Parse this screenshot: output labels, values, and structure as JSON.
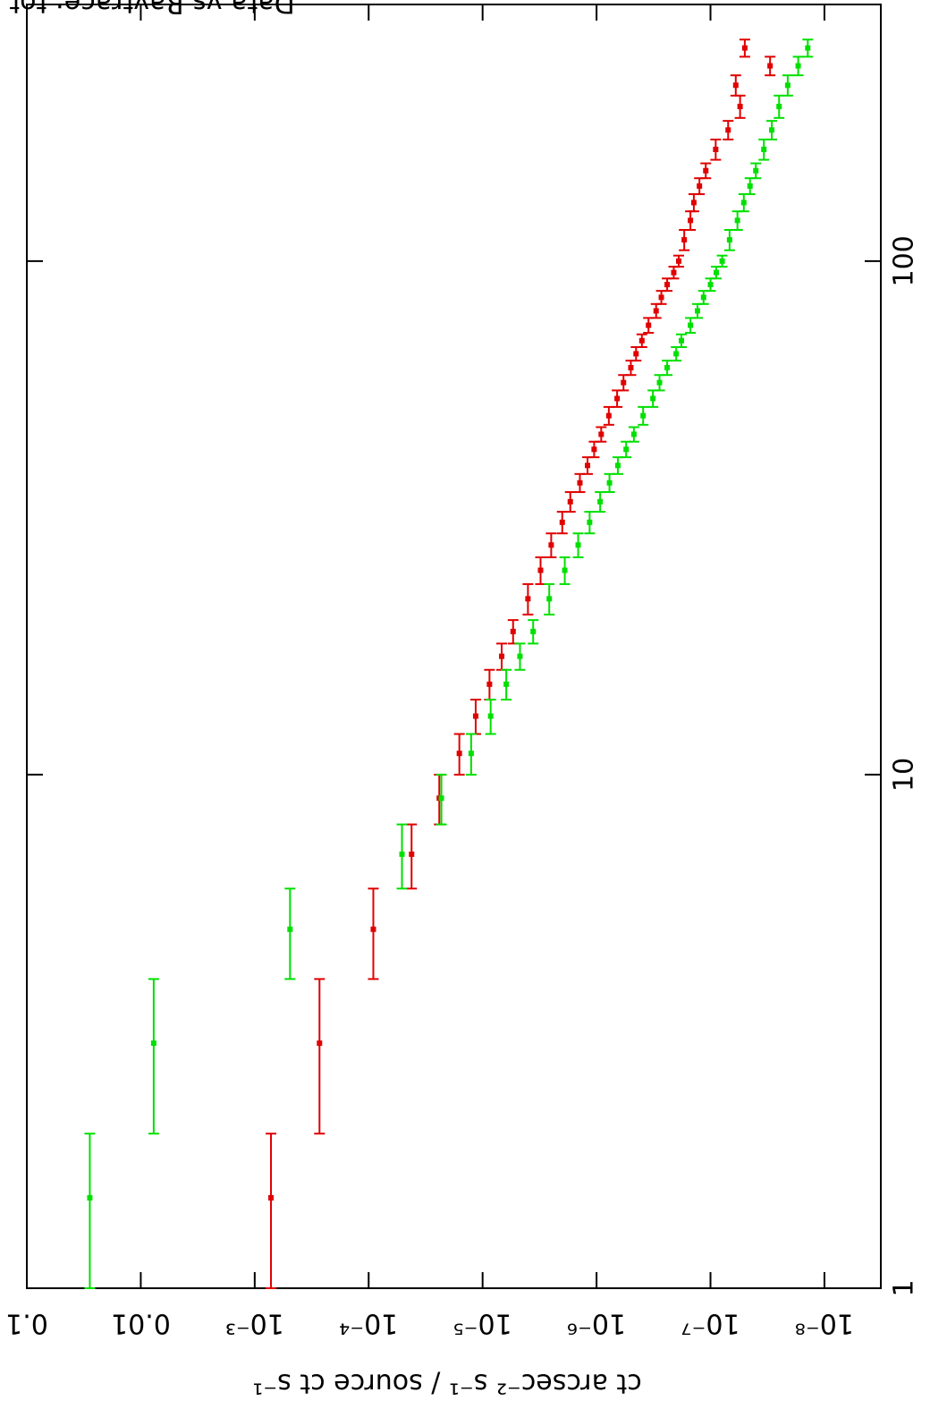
{
  "chart_data": {
    "type": "errorbar",
    "title": "Data vs Raytrace: tot",
    "y_label": "ct arcsec⁻² s⁻¹ / source ct s⁻¹",
    "x_log": true,
    "y_log": true,
    "xlim": [
      1,
      316
    ],
    "ylim": [
      0.1,
      3.2e-09
    ],
    "xticks": [
      1,
      10,
      100
    ],
    "yticks": [
      0.1,
      0.01,
      {
        "value": 0.001,
        "label": "10⁻³"
      },
      {
        "value": 0.0001,
        "label": "10⁻⁴"
      },
      {
        "value": 1e-05,
        "label": "10⁻⁵"
      },
      {
        "value": 1e-06,
        "label": "10⁻⁶"
      },
      {
        "value": 1e-07,
        "label": "10⁻⁷"
      },
      {
        "value": 1e-08,
        "label": "10⁻⁸"
      }
    ],
    "x": [
      1.5,
      3,
      5,
      7,
      9,
      11,
      13,
      15,
      17,
      19,
      22,
      25,
      28,
      31,
      34,
      37,
      40,
      43,
      46,
      50,
      54,
      58,
      62,
      66,
      70,
      75,
      80,
      85,
      90,
      95,
      100,
      110,
      120,
      130,
      140,
      150,
      165,
      180,
      200,
      220,
      240,
      260
    ],
    "x_err": [
      0.5,
      1,
      1,
      1,
      1,
      1,
      1,
      1,
      1,
      1,
      1.5,
      1.5,
      1.5,
      1.5,
      1.5,
      1.5,
      1.5,
      1.5,
      1.5,
      2,
      2,
      2,
      2,
      2,
      2,
      2.5,
      2.5,
      2.5,
      2.5,
      2.5,
      2.5,
      5,
      5,
      5,
      5,
      5,
      7.5,
      7.5,
      10,
      10,
      10,
      10
    ],
    "series": [
      {
        "color": "#e00000",
        "values": [
          0.00072,
          0.00027,
          9.1e-05,
          4.2e-05,
          2.4e-05,
          1.6e-05,
          1.15e-05,
          8.7e-06,
          6.8e-06,
          5.4e-06,
          4e-06,
          3.1e-06,
          2.5e-06,
          2e-06,
          1.7e-06,
          1.4e-06,
          1.2e-06,
          1.05e-06,
          9.1e-07,
          7.8e-07,
          6.6e-07,
          5.8e-07,
          5e-07,
          4.5e-07,
          4e-07,
          3.5e-07,
          3e-07,
          2.7e-07,
          2.4e-07,
          2.1e-07,
          1.9e-07,
          1.7e-07,
          1.5e-07,
          1.4e-07,
          1.25e-07,
          1.1e-07,
          9e-08,
          7e-08,
          5.5e-08,
          6e-08,
          3e-08,
          5e-08
        ]
      },
      {
        "color": "#00e000",
        "values": [
          0.028,
          0.0077,
          0.00049,
          5.1e-05,
          2.3e-05,
          1.26e-05,
          8.5e-06,
          6.2e-06,
          4.7e-06,
          3.6e-06,
          2.6e-06,
          1.9e-06,
          1.45e-06,
          1.15e-06,
          9.3e-07,
          7.7e-07,
          6.5e-07,
          5.5e-07,
          4.7e-07,
          3.9e-07,
          3.2e-07,
          2.8e-07,
          2.4e-07,
          2e-07,
          1.8e-07,
          1.5e-07,
          1.3e-07,
          1.15e-07,
          1e-07,
          8.9e-08,
          7.9e-08,
          6.8e-08,
          5.8e-08,
          5.1e-08,
          4.5e-08,
          4e-08,
          3.4e-08,
          2.9e-08,
          2.5e-08,
          2.1e-08,
          1.7e-08,
          1.4e-08
        ]
      }
    ]
  }
}
